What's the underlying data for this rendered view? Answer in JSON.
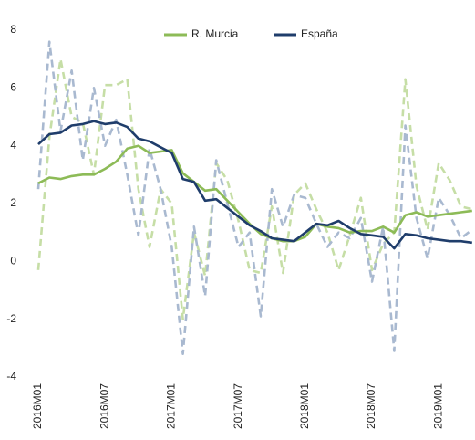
{
  "chart_data": {
    "type": "line",
    "categories": [
      "2016M01",
      null,
      null,
      null,
      null,
      null,
      "2016M07",
      null,
      null,
      null,
      null,
      null,
      "2017M01",
      null,
      null,
      null,
      null,
      null,
      "2017M07",
      null,
      null,
      null,
      null,
      null,
      "2018M01",
      null,
      null,
      null,
      null,
      null,
      "2018M07",
      null,
      null,
      null,
      null,
      null,
      "2019M01",
      null,
      null,
      null
    ],
    "ylim": [
      -4,
      8
    ],
    "yticks": [
      8,
      6,
      4,
      2,
      0,
      -2,
      -4
    ],
    "grid": false,
    "legend": "top",
    "series": [
      {
        "color": "#c6dea6",
        "dashed": true,
        "values": [
          -0.3,
          4.3,
          7.0,
          5.0,
          4.8,
          3.0,
          6.1,
          6.1,
          6.3,
          2.5,
          0.5,
          2.5,
          2.0,
          -2.0,
          1.0,
          -0.5,
          3.4,
          2.8,
          1.4,
          -0.3,
          -0.4,
          1.9,
          -0.4,
          2.3,
          2.7,
          1.8,
          1.0,
          -0.3,
          0.9,
          2.2,
          -0.3,
          0.6,
          1.0,
          6.3,
          2.6,
          1.1,
          3.4,
          2.8,
          1.9,
          1.8
        ]
      },
      {
        "color": "#a9b9d0",
        "dashed": true,
        "values": [
          2.5,
          7.6,
          4.5,
          6.6,
          3.5,
          6.0,
          4.0,
          4.9,
          3.0,
          0.9,
          3.9,
          2.5,
          0.5,
          -3.2,
          1.2,
          -1.2,
          3.5,
          2.0,
          0.5,
          1.0,
          -1.9,
          2.5,
          1.2,
          2.3,
          2.2,
          1.3,
          0.5,
          1.0,
          0.8,
          1.5,
          -0.7,
          1.2,
          -3.1,
          4.7,
          1.5,
          0.1,
          2.2,
          1.6,
          0.8,
          1.1
        ]
      },
      {
        "name": "R. Murcia",
        "color": "#8dbb57",
        "dashed": false,
        "values": [
          2.7,
          2.9,
          2.85,
          2.95,
          3.0,
          3.0,
          3.2,
          3.45,
          3.9,
          4.0,
          3.75,
          3.8,
          3.85,
          3.05,
          2.75,
          2.45,
          2.5,
          2.1,
          1.7,
          1.3,
          0.95,
          0.8,
          0.7,
          0.7,
          0.85,
          1.3,
          1.2,
          1.15,
          1.0,
          1.05,
          1.05,
          1.2,
          1.0,
          1.6,
          1.7,
          1.55,
          1.6,
          1.65,
          1.7,
          1.75
        ]
      },
      {
        "name": "España",
        "color": "#1f3d6b",
        "dashed": false,
        "values": [
          4.05,
          4.4,
          4.45,
          4.7,
          4.75,
          4.85,
          4.75,
          4.8,
          4.65,
          4.25,
          4.15,
          3.95,
          3.75,
          2.85,
          2.75,
          2.1,
          2.15,
          1.85,
          1.55,
          1.25,
          1.05,
          0.8,
          0.75,
          0.7,
          1.0,
          1.3,
          1.25,
          1.4,
          1.15,
          0.95,
          0.9,
          0.85,
          0.45,
          0.95,
          0.9,
          0.8,
          0.75,
          0.7,
          0.7,
          0.65
        ]
      }
    ]
  }
}
